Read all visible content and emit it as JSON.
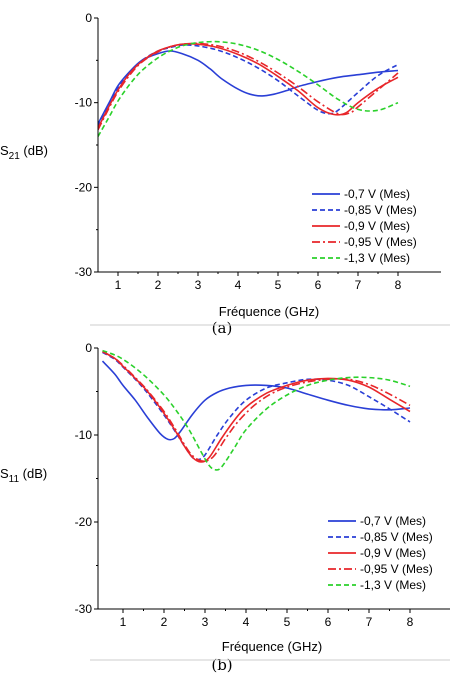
{
  "chart_data": [
    {
      "type": "line",
      "panel": "(a)",
      "xlabel": "Fréquence (GHz)",
      "ylabel_main": "S",
      "ylabel_sub": "21",
      "ylabel_unit": " (dB)",
      "xlim": [
        0.5,
        8
      ],
      "ylim": [
        -30,
        0
      ],
      "xticks": [
        "1",
        "2",
        "3",
        "4",
        "5",
        "6",
        "7",
        "8"
      ],
      "yticks": [
        "0",
        "-10",
        "-20",
        "-30"
      ],
      "legend_position": "bottom-right",
      "series": [
        {
          "name": "-0,7 V (Mes)",
          "color": "#2a3fd6",
          "dash": "solid",
          "x": [
            0.5,
            0.8,
            1.0,
            1.3,
            1.6,
            2.0,
            2.3,
            2.6,
            3.0,
            3.3,
            3.6,
            4.0,
            4.3,
            4.6,
            4.9,
            5.2,
            5.5,
            6.0,
            6.5,
            7.0,
            7.5,
            8.0
          ],
          "y": [
            -12.5,
            -9.8,
            -8.0,
            -6.3,
            -5.0,
            -4.2,
            -3.9,
            -4.2,
            -5.0,
            -6.0,
            -7.2,
            -8.4,
            -9.0,
            -9.2,
            -9.0,
            -8.6,
            -8.1,
            -7.5,
            -7.0,
            -6.7,
            -6.4,
            -6.2
          ]
        },
        {
          "name": "-0,85 V (Mes)",
          "color": "#2a3fd6",
          "dash": "dashed",
          "x": [
            0.5,
            0.8,
            1.0,
            1.3,
            1.6,
            2.0,
            2.3,
            2.6,
            3.0,
            3.5,
            4.0,
            4.5,
            5.0,
            5.5,
            6.0,
            6.3,
            6.5,
            7.0,
            7.5,
            8.0
          ],
          "y": [
            -12.8,
            -10.0,
            -8.3,
            -6.4,
            -5.0,
            -3.9,
            -3.5,
            -3.2,
            -3.3,
            -3.8,
            -4.7,
            -5.9,
            -7.4,
            -9.2,
            -10.9,
            -11.3,
            -10.9,
            -8.8,
            -6.8,
            -5.5
          ]
        },
        {
          "name": "-0,9 V (Mes)",
          "color": "#e8262a",
          "dash": "solid",
          "x": [
            0.5,
            0.8,
            1.0,
            1.3,
            1.6,
            2.0,
            2.3,
            2.6,
            3.0,
            3.5,
            4.0,
            4.5,
            5.0,
            5.5,
            6.0,
            6.4,
            6.7,
            7.0,
            7.5,
            8.0
          ],
          "y": [
            -13.0,
            -10.2,
            -8.5,
            -6.5,
            -5.1,
            -3.9,
            -3.4,
            -3.1,
            -3.1,
            -3.5,
            -4.3,
            -5.4,
            -6.9,
            -8.6,
            -10.6,
            -11.4,
            -11.2,
            -10.0,
            -8.3,
            -7.0
          ]
        },
        {
          "name": "-0,95 V (Mes)",
          "color": "#e8262a",
          "dash": "dashdot",
          "x": [
            0.5,
            0.8,
            1.0,
            1.3,
            1.6,
            2.0,
            2.3,
            2.6,
            3.0,
            3.5,
            4.0,
            4.5,
            5.0,
            5.5,
            6.0,
            6.5,
            6.8,
            7.0,
            7.5,
            8.0
          ],
          "y": [
            -13.2,
            -10.4,
            -8.7,
            -6.7,
            -5.2,
            -4.0,
            -3.4,
            -3.1,
            -3.0,
            -3.3,
            -4.0,
            -5.1,
            -6.5,
            -8.1,
            -9.9,
            -11.3,
            -11.2,
            -10.5,
            -8.5,
            -6.5
          ]
        },
        {
          "name": "-1,3 V (Mes)",
          "color": "#2bd12b",
          "dash": "dashed",
          "x": [
            0.5,
            0.8,
            1.0,
            1.3,
            1.6,
            2.0,
            2.3,
            2.6,
            3.0,
            3.5,
            4.0,
            4.5,
            5.0,
            5.5,
            6.0,
            6.5,
            7.0,
            7.5,
            8.0
          ],
          "y": [
            -14.0,
            -11.5,
            -9.8,
            -7.8,
            -6.2,
            -4.7,
            -3.9,
            -3.3,
            -2.9,
            -2.8,
            -3.1,
            -3.8,
            -4.9,
            -6.3,
            -7.9,
            -9.6,
            -10.8,
            -10.9,
            -10.0
          ]
        }
      ]
    },
    {
      "type": "line",
      "panel": "(b)",
      "xlabel": "Fréquence (GHz)",
      "ylabel_main": "S",
      "ylabel_sub": "11",
      "ylabel_unit": " (dB)",
      "xlim": [
        0.5,
        8
      ],
      "ylim": [
        -30,
        0
      ],
      "xticks": [
        "1",
        "2",
        "3",
        "4",
        "5",
        "6",
        "7",
        "8"
      ],
      "yticks": [
        "0",
        "-10",
        "-20",
        "-30"
      ],
      "legend_position": "bottom-right",
      "series": [
        {
          "name": "-0,7 V (Mes)",
          "color": "#2a3fd6",
          "dash": "solid",
          "x": [
            0.5,
            0.8,
            1.0,
            1.3,
            1.6,
            1.9,
            2.1,
            2.25,
            2.4,
            2.7,
            3.0,
            3.3,
            3.6,
            4.0,
            4.5,
            5.0,
            5.5,
            6.0,
            6.5,
            7.0,
            7.5,
            8.0
          ],
          "y": [
            -1.5,
            -3.0,
            -4.3,
            -6.0,
            -8.0,
            -9.8,
            -10.5,
            -10.4,
            -9.6,
            -7.6,
            -6.0,
            -5.1,
            -4.6,
            -4.3,
            -4.3,
            -4.6,
            -5.3,
            -6.0,
            -6.6,
            -7.0,
            -7.1,
            -6.9
          ]
        },
        {
          "name": "-0,85 V (Mes)",
          "color": "#2a3fd6",
          "dash": "dashed",
          "x": [
            0.5,
            0.8,
            1.0,
            1.3,
            1.6,
            2.0,
            2.3,
            2.5,
            2.7,
            2.85,
            3.0,
            3.3,
            3.6,
            4.0,
            4.5,
            5.0,
            5.5,
            6.0,
            6.5,
            7.0,
            7.5,
            8.0
          ],
          "y": [
            -0.5,
            -1.3,
            -2.2,
            -3.6,
            -5.2,
            -7.7,
            -9.8,
            -11.3,
            -12.6,
            -12.8,
            -12.3,
            -10.0,
            -8.0,
            -6.0,
            -4.6,
            -4.0,
            -3.6,
            -3.7,
            -4.3,
            -5.6,
            -7.0,
            -8.5
          ]
        },
        {
          "name": "-0,9 V (Mes)",
          "color": "#e8262a",
          "dash": "solid",
          "x": [
            0.5,
            0.8,
            1.0,
            1.3,
            1.6,
            2.0,
            2.3,
            2.5,
            2.7,
            2.9,
            3.1,
            3.4,
            3.7,
            4.0,
            4.5,
            5.0,
            5.5,
            6.0,
            6.5,
            7.0,
            7.5,
            8.0
          ],
          "y": [
            -0.4,
            -1.2,
            -2.1,
            -3.5,
            -5.0,
            -7.5,
            -9.7,
            -11.3,
            -12.6,
            -13.1,
            -12.6,
            -10.4,
            -8.4,
            -6.8,
            -5.2,
            -4.3,
            -3.7,
            -3.5,
            -3.7,
            -4.5,
            -5.9,
            -7.3
          ]
        },
        {
          "name": "-0,95 V (Mes)",
          "color": "#e8262a",
          "dash": "dashdot",
          "x": [
            0.5,
            0.8,
            1.0,
            1.3,
            1.6,
            2.0,
            2.3,
            2.5,
            2.7,
            2.95,
            3.2,
            3.5,
            3.8,
            4.2,
            4.6,
            5.0,
            5.5,
            6.0,
            6.5,
            7.0,
            7.5,
            8.0
          ],
          "y": [
            -0.4,
            -1.2,
            -2.0,
            -3.4,
            -4.9,
            -7.3,
            -9.5,
            -11.1,
            -12.4,
            -13.0,
            -12.5,
            -10.4,
            -8.5,
            -6.6,
            -5.3,
            -4.5,
            -3.9,
            -3.6,
            -3.6,
            -4.2,
            -5.3,
            -6.6
          ]
        },
        {
          "name": "-1,3 V (Mes)",
          "color": "#2bd12b",
          "dash": "dashed",
          "x": [
            0.5,
            0.8,
            1.0,
            1.3,
            1.6,
            2.0,
            2.3,
            2.6,
            2.9,
            3.1,
            3.25,
            3.4,
            3.7,
            4.0,
            4.5,
            5.0,
            5.5,
            6.0,
            6.5,
            7.0,
            7.5,
            8.0
          ],
          "y": [
            -0.3,
            -0.8,
            -1.3,
            -2.3,
            -3.5,
            -5.4,
            -7.2,
            -9.3,
            -11.9,
            -13.5,
            -14.0,
            -13.7,
            -11.6,
            -9.4,
            -7.0,
            -5.4,
            -4.3,
            -3.7,
            -3.4,
            -3.4,
            -3.7,
            -4.4
          ]
        }
      ]
    }
  ],
  "captions": [
    "(a)",
    "(b)"
  ]
}
